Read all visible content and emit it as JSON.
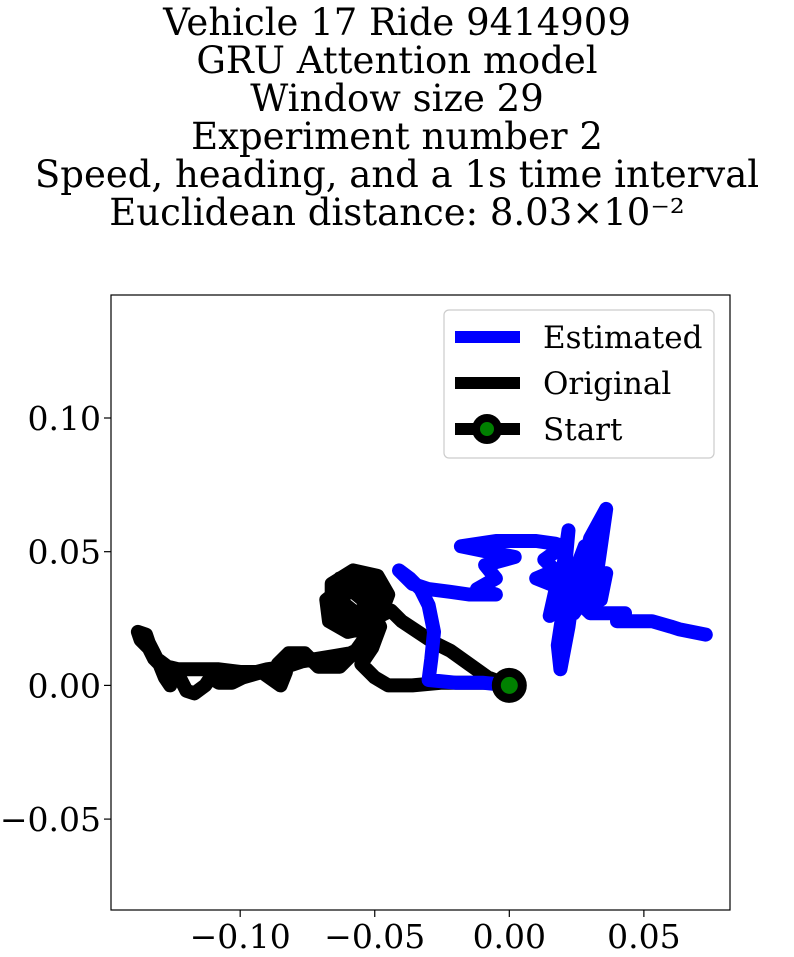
{
  "title_lines": [
    "Vehicle 17 Ride 9414909",
    "GRU Attention model",
    "Window size 29",
    "Experiment number 2",
    "Speed, heading, and a 1s time interval",
    "Euclidean distance: 8.03×10⁻²"
  ],
  "chart_data": {
    "type": "line",
    "title": "Vehicle 17 Ride 9414909 / GRU Attention model / Window size 29 / Experiment number 2 / Speed, heading, and a 1s time interval / Euclidean distance: 8.03×10⁻²",
    "xlabel": "",
    "ylabel": "",
    "xlim": [
      -0.148,
      0.082
    ],
    "ylim": [
      -0.084,
      0.146
    ],
    "xticks": [
      -0.1,
      -0.05,
      0.0,
      0.05
    ],
    "xtick_labels": [
      "−0.10",
      "−0.05",
      "0.00",
      "0.05"
    ],
    "yticks": [
      -0.05,
      0.0,
      0.05,
      0.1
    ],
    "ytick_labels": [
      "−0.05",
      "0.00",
      "0.05",
      "0.10"
    ],
    "grid": false,
    "legend_position": "upper right",
    "series": [
      {
        "name": "Estimated",
        "color": "#0000ff",
        "points": [
          [
            0.0,
            0.0
          ],
          [
            -0.01,
            0.001
          ],
          [
            -0.02,
            0.001
          ],
          [
            -0.03,
            0.002
          ],
          [
            -0.029,
            0.01
          ],
          [
            -0.028,
            0.02
          ],
          [
            -0.03,
            0.03
          ],
          [
            -0.033,
            0.036
          ],
          [
            -0.037,
            0.04
          ],
          [
            -0.041,
            0.043
          ],
          [
            -0.036,
            0.038
          ],
          [
            -0.03,
            0.036
          ],
          [
            -0.022,
            0.035
          ],
          [
            -0.015,
            0.034
          ],
          [
            -0.005,
            0.034
          ],
          [
            -0.012,
            0.036
          ],
          [
            -0.005,
            0.04
          ],
          [
            -0.009,
            0.045
          ],
          [
            0.002,
            0.048
          ],
          [
            -0.008,
            0.05
          ],
          [
            -0.018,
            0.052
          ],
          [
            -0.005,
            0.054
          ],
          [
            0.01,
            0.054
          ],
          [
            0.017,
            0.053
          ],
          [
            0.02,
            0.052
          ],
          [
            0.013,
            0.047
          ],
          [
            0.017,
            0.043
          ],
          [
            0.01,
            0.04
          ],
          [
            0.02,
            0.036
          ],
          [
            0.022,
            0.058
          ],
          [
            0.02,
            0.044
          ],
          [
            0.017,
            0.035
          ],
          [
            0.015,
            0.026
          ],
          [
            0.018,
            0.036
          ],
          [
            0.02,
            0.028
          ],
          [
            0.018,
            0.015
          ],
          [
            0.019,
            0.006
          ],
          [
            0.022,
            0.022
          ],
          [
            0.025,
            0.044
          ],
          [
            0.028,
            0.052
          ],
          [
            0.025,
            0.033
          ],
          [
            0.024,
            0.027
          ],
          [
            0.03,
            0.036
          ],
          [
            0.033,
            0.045
          ],
          [
            0.036,
            0.066
          ],
          [
            0.03,
            0.055
          ],
          [
            0.027,
            0.042
          ],
          [
            0.026,
            0.032
          ],
          [
            0.03,
            0.04
          ],
          [
            0.036,
            0.042
          ],
          [
            0.034,
            0.032
          ],
          [
            0.026,
            0.031
          ],
          [
            0.03,
            0.027
          ],
          [
            0.043,
            0.027
          ],
          [
            0.04,
            0.024
          ],
          [
            0.053,
            0.024
          ],
          [
            0.06,
            0.022
          ],
          [
            0.063,
            0.021
          ],
          [
            0.073,
            0.019
          ]
        ]
      },
      {
        "name": "Original",
        "color": "#000000",
        "points": [
          [
            0.0,
            0.0
          ],
          [
            -0.008,
            0.003
          ],
          [
            -0.015,
            0.008
          ],
          [
            -0.022,
            0.013
          ],
          [
            -0.028,
            0.016
          ],
          [
            -0.034,
            0.02
          ],
          [
            -0.04,
            0.024
          ],
          [
            -0.044,
            0.028
          ],
          [
            -0.048,
            0.026
          ],
          [
            -0.052,
            0.02
          ],
          [
            -0.057,
            0.013
          ],
          [
            -0.063,
            0.007
          ],
          [
            -0.071,
            0.007
          ],
          [
            -0.074,
            0.01
          ],
          [
            -0.076,
            0.012
          ],
          [
            -0.082,
            0.012
          ],
          [
            -0.086,
            0.008
          ],
          [
            -0.083,
            0.005
          ],
          [
            -0.085,
            0.0
          ],
          [
            -0.092,
            0.005
          ],
          [
            -0.099,
            0.003
          ],
          [
            -0.103,
            0.001
          ],
          [
            -0.108,
            0.001
          ],
          [
            -0.111,
            0.003
          ],
          [
            -0.113,
            0.0
          ],
          [
            -0.117,
            -0.003
          ],
          [
            -0.12,
            -0.002
          ],
          [
            -0.122,
            0.002
          ],
          [
            -0.125,
            0.004
          ],
          [
            -0.126,
            0.0
          ],
          [
            -0.128,
            0.003
          ],
          [
            -0.13,
            0.008
          ],
          [
            -0.132,
            0.01
          ],
          [
            -0.134,
            0.014
          ],
          [
            -0.137,
            0.017
          ],
          [
            -0.138,
            0.02
          ],
          [
            -0.135,
            0.019
          ],
          [
            -0.134,
            0.016
          ],
          [
            -0.132,
            0.012
          ],
          [
            -0.131,
            0.01
          ],
          [
            -0.127,
            0.007
          ],
          [
            -0.123,
            0.006
          ],
          [
            -0.117,
            0.006
          ],
          [
            -0.108,
            0.006
          ],
          [
            -0.1,
            0.005
          ],
          [
            -0.094,
            0.005
          ],
          [
            -0.09,
            0.006
          ],
          [
            -0.083,
            0.007
          ],
          [
            -0.077,
            0.009
          ],
          [
            -0.071,
            0.01
          ],
          [
            -0.065,
            0.011
          ],
          [
            -0.059,
            0.012
          ],
          [
            -0.053,
            0.015
          ],
          [
            -0.05,
            0.022
          ],
          [
            -0.052,
            0.03
          ],
          [
            -0.058,
            0.035
          ],
          [
            -0.063,
            0.036
          ],
          [
            -0.068,
            0.032
          ],
          [
            -0.067,
            0.024
          ],
          [
            -0.06,
            0.02
          ],
          [
            -0.051,
            0.022
          ],
          [
            -0.046,
            0.029
          ],
          [
            -0.048,
            0.037
          ],
          [
            -0.055,
            0.042
          ],
          [
            -0.063,
            0.04
          ],
          [
            -0.067,
            0.032
          ],
          [
            -0.063,
            0.025
          ],
          [
            -0.055,
            0.022
          ],
          [
            -0.048,
            0.026
          ],
          [
            -0.045,
            0.034
          ],
          [
            -0.049,
            0.041
          ],
          [
            -0.058,
            0.043
          ],
          [
            -0.066,
            0.038
          ],
          [
            -0.066,
            0.03
          ],
          [
            -0.06,
            0.023
          ],
          [
            -0.053,
            0.024
          ],
          [
            -0.047,
            0.031
          ],
          [
            -0.05,
            0.039
          ],
          [
            -0.058,
            0.041
          ],
          [
            -0.064,
            0.035
          ],
          [
            -0.061,
            0.027
          ],
          [
            -0.054,
            0.025
          ],
          [
            -0.049,
            0.031
          ],
          [
            -0.053,
            0.037
          ],
          [
            -0.06,
            0.038
          ],
          [
            -0.062,
            0.031
          ],
          [
            -0.057,
            0.027
          ],
          [
            -0.052,
            0.03
          ],
          [
            -0.048,
            0.022
          ],
          [
            -0.051,
            0.014
          ],
          [
            -0.055,
            0.008
          ],
          [
            -0.05,
            0.003
          ],
          [
            -0.045,
            0.0
          ],
          [
            -0.036,
            0.0
          ],
          [
            -0.025,
            0.001
          ],
          [
            -0.015,
            0.001
          ],
          [
            -0.005,
            0.001
          ],
          [
            0.0,
            0.0
          ]
        ]
      }
    ],
    "start_marker": {
      "name": "Start",
      "x": 0.0,
      "y": 0.0,
      "edge_color": "#000000",
      "face_color": "#008000"
    }
  }
}
